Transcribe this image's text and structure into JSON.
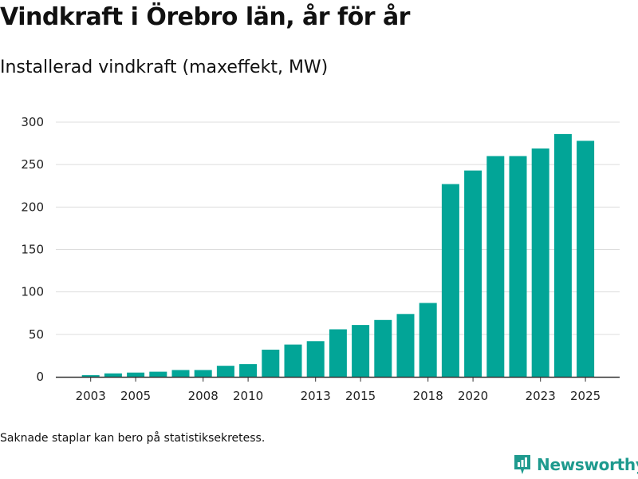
{
  "header": {
    "title": "Vindkraft i Örebro län, år för år",
    "subtitle": "Installerad vindkraft (maxeffekt, MW)"
  },
  "footer": {
    "note": "Saknade staplar kan bero på statistiksekretess.",
    "brand": "Newsworthy"
  },
  "colors": {
    "bar": "#02a597",
    "grid": "#dddddd",
    "axis": "#333333",
    "brand": "#1e9a8e"
  },
  "chart_data": {
    "type": "bar",
    "title": "Vindkraft i Örebro län, år för år",
    "subtitle": "Installerad vindkraft (maxeffekt, MW)",
    "xlabel": "",
    "ylabel": "",
    "ylim": [
      0,
      300
    ],
    "yticks": [
      0,
      50,
      100,
      150,
      200,
      250,
      300
    ],
    "xticks": [
      2003,
      2005,
      2008,
      2010,
      2013,
      2015,
      2018,
      2020,
      2023,
      2025
    ],
    "grid": true,
    "categories": [
      2002,
      2003,
      2004,
      2005,
      2006,
      2007,
      2008,
      2009,
      2010,
      2011,
      2012,
      2013,
      2014,
      2015,
      2016,
      2017,
      2018,
      2019,
      2020,
      2021,
      2022,
      2023,
      2024,
      2025
    ],
    "values": [
      0,
      2,
      4,
      5,
      6,
      8,
      8,
      13,
      15,
      32,
      38,
      42,
      56,
      61,
      67,
      74,
      87,
      227,
      243,
      260,
      260,
      269,
      286,
      278
    ]
  }
}
